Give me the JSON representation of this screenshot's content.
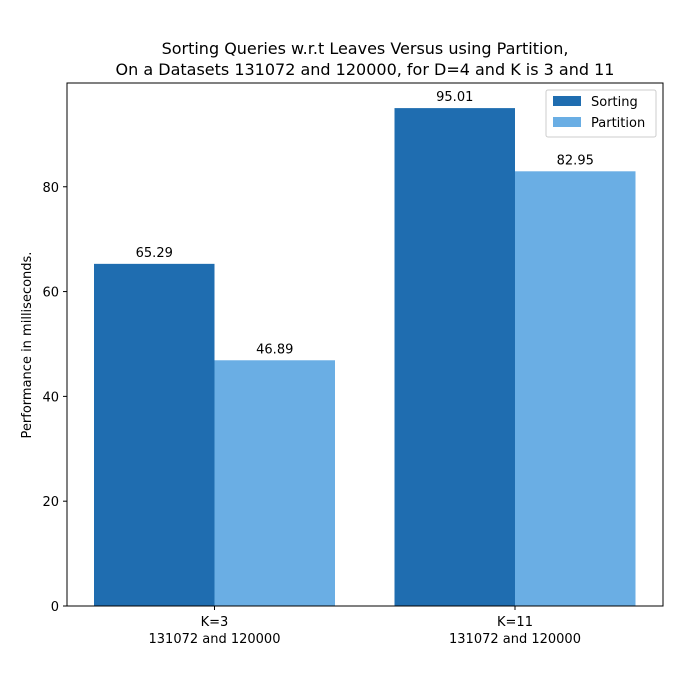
{
  "chart_data": {
    "type": "bar",
    "title_lines": [
      "Sorting Queries w.r.t Leaves Versus using Partition,",
      "On a Datasets 131072 and 120000, for D=4 and K is 3 and 11"
    ],
    "xlabel": "",
    "ylabel": "Performance in milliseconds.",
    "categories": [
      {
        "line1": "K=3",
        "line2": "131072 and 120000"
      },
      {
        "line1": "K=11",
        "line2": "131072 and 120000"
      }
    ],
    "series": [
      {
        "name": "Sorting",
        "color": "#1f6db0",
        "values": [
          65.29,
          95.01
        ],
        "labels": [
          "65.29",
          "95.01"
        ]
      },
      {
        "name": "Partition",
        "color": "#6aaee4",
        "values": [
          46.89,
          82.95
        ],
        "labels": [
          "46.89",
          "82.95"
        ]
      }
    ],
    "yticks": [
      0,
      20,
      40,
      60,
      80
    ],
    "ylim": [
      0,
      99.8
    ],
    "grid": false,
    "legend_position": "top-right"
  }
}
